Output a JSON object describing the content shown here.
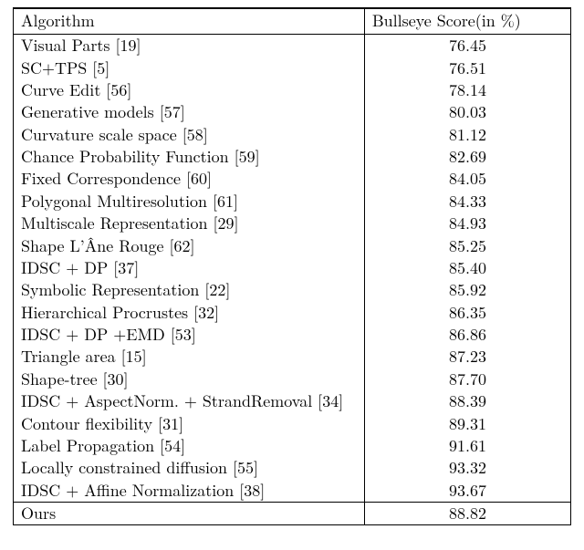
{
  "table": {
    "type": "table",
    "background_color": "#ffffff",
    "text_color": "#000000",
    "border_color": "#000000",
    "font_family": "Latin Modern Roman / Computer Modern serif",
    "font_size_pt": 13,
    "line_height": 1.0,
    "col_widths_pct": [
      63,
      37
    ],
    "alignments": [
      "left",
      "center"
    ],
    "top_rule": "double",
    "columns": [
      "Algorithm",
      "Bullseye Score(in %)"
    ],
    "separator_before_last_row": true,
    "rows": [
      {
        "algorithm": "Visual Parts [19]",
        "score": "76.45"
      },
      {
        "algorithm": "SC+TPS [5]",
        "score": "76.51"
      },
      {
        "algorithm": "Curve Edit [56]",
        "score": "78.14"
      },
      {
        "algorithm": "Generative models [57]",
        "score": "80.03"
      },
      {
        "algorithm": "Curvature scale space [58]",
        "score": "81.12"
      },
      {
        "algorithm": "Chance Probability Function [59]",
        "score": "82.69"
      },
      {
        "algorithm": "Fixed Correspondence [60]",
        "score": "84.05"
      },
      {
        "algorithm": "Polygonal Multiresolution [61]",
        "score": "84.33"
      },
      {
        "algorithm": "Multiscale Representation [29]",
        "score": "84.93"
      },
      {
        "algorithm": "Shape L’Âne Rouge [62]",
        "score": "85.25"
      },
      {
        "algorithm": "IDSC + DP [37]",
        "score": "85.40"
      },
      {
        "algorithm": "Symbolic Representation [22]",
        "score": "85.92"
      },
      {
        "algorithm": "Hierarchical Procrustes [32]",
        "score": "86.35"
      },
      {
        "algorithm": "IDSC + DP +EMD [53]",
        "score": "86.86"
      },
      {
        "algorithm": "Triangle area [15]",
        "score": "87.23"
      },
      {
        "algorithm": "Shape-tree [30]",
        "score": "87.70"
      },
      {
        "algorithm": "IDSC + AspectNorm. + StrandRemoval [34]",
        "score": "88.39"
      },
      {
        "algorithm": "Contour flexibility [31]",
        "score": "89.31"
      },
      {
        "algorithm": "Label Propagation [54]",
        "score": "91.61"
      },
      {
        "algorithm": "Locally constrained diffusion [55]",
        "score": "93.32"
      },
      {
        "algorithm": "IDSC + Affine Normalization [38]",
        "score": "93.67"
      },
      {
        "algorithm": "Ours",
        "score": "88.82"
      }
    ]
  }
}
